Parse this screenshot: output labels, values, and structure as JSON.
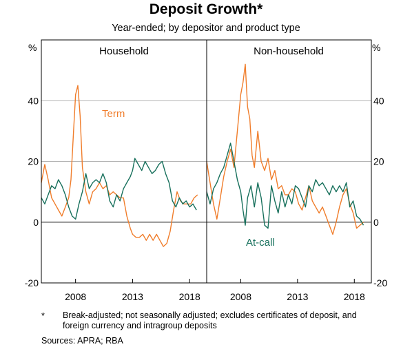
{
  "title": "Deposit Growth*",
  "subtitle": "Year-ended; by depositor and product type",
  "footnote_marker": "*",
  "footnote": "Break-adjusted; not seasonally adjusted; excludes certificates of deposit, and foreign currency and intragroup deposits",
  "sources": "Sources:   APRA; RBA",
  "colors": {
    "term": "#f07d2b",
    "at_call": "#17705c",
    "grid": "#b3b3b3"
  },
  "chart_data": {
    "type": "line",
    "unit_left": "%",
    "unit_right": "%",
    "ylim": [
      -20,
      60
    ],
    "yticks": [
      -20,
      0,
      20,
      40
    ],
    "ytick_labels": [
      "-20",
      "0",
      "20",
      "40"
    ],
    "xticks": [
      2008,
      2013,
      2018
    ],
    "xtick_labels": [
      "2008",
      "2013",
      "2018"
    ],
    "xlim": [
      2005,
      2019.5
    ],
    "grid": true,
    "panels": [
      {
        "title": "Household",
        "series": [
          {
            "name": "Term",
            "key": "term",
            "x": [
              2005.0,
              2005.3,
              2005.6,
              2005.9,
              2006.2,
              2006.5,
              2006.8,
              2007.1,
              2007.4,
              2007.6,
              2007.8,
              2008.0,
              2008.2,
              2008.4,
              2008.6,
              2008.9,
              2009.2,
              2009.5,
              2009.8,
              2010.1,
              2010.4,
              2010.7,
              2011.0,
              2011.3,
              2011.6,
              2011.9,
              2012.2,
              2012.5,
              2012.8,
              2013.0,
              2013.3,
              2013.6,
              2013.9,
              2014.2,
              2014.5,
              2014.8,
              2015.1,
              2015.4,
              2015.7,
              2016.0,
              2016.3,
              2016.6,
              2016.9,
              2017.2,
              2017.5,
              2017.8,
              2018.1,
              2018.4,
              2018.7
            ],
            "y": [
              13,
              19,
              14,
              8,
              6,
              4,
              2,
              5,
              8,
              14,
              28,
              42,
              45,
              35,
              18,
              10,
              6,
              10,
              11,
              13,
              11,
              12,
              9,
              10,
              9,
              8,
              8,
              2,
              -2,
              -4,
              -5,
              -5,
              -4,
              -6,
              -4,
              -6,
              -4,
              -6,
              -8,
              -7,
              -3,
              4,
              10,
              7,
              6,
              6,
              6,
              8,
              9
            ]
          },
          {
            "name": "At-call",
            "key": "at_call",
            "x": [
              2005.0,
              2005.3,
              2005.6,
              2005.9,
              2006.2,
              2006.5,
              2006.8,
              2007.1,
              2007.4,
              2007.7,
              2008.0,
              2008.3,
              2008.6,
              2008.9,
              2009.2,
              2009.5,
              2009.8,
              2010.1,
              2010.4,
              2010.7,
              2011.0,
              2011.3,
              2011.6,
              2011.9,
              2012.2,
              2012.5,
              2012.8,
              2013.0,
              2013.2,
              2013.5,
              2013.8,
              2014.1,
              2014.4,
              2014.7,
              2015.0,
              2015.3,
              2015.6,
              2015.9,
              2016.2,
              2016.5,
              2016.8,
              2017.1,
              2017.4,
              2017.7,
              2018.0,
              2018.3,
              2018.6
            ],
            "y": [
              8,
              6,
              9,
              12,
              11,
              14,
              12,
              9,
              5,
              2,
              1,
              6,
              10,
              16,
              11,
              13,
              14,
              13,
              16,
              13,
              7,
              5,
              9,
              7,
              11,
              13,
              15,
              17,
              21,
              19,
              17,
              20,
              18,
              16,
              17,
              19,
              20,
              16,
              13,
              7,
              5,
              8,
              6,
              7,
              5,
              6,
              4
            ]
          }
        ]
      },
      {
        "title": "Non-household",
        "series": [
          {
            "name": "Term",
            "key": "term",
            "x": [
              2005.0,
              2005.3,
              2005.6,
              2005.9,
              2006.2,
              2006.5,
              2006.8,
              2007.1,
              2007.4,
              2007.7,
              2008.0,
              2008.2,
              2008.4,
              2008.6,
              2008.8,
              2009.0,
              2009.2,
              2009.5,
              2009.8,
              2010.1,
              2010.4,
              2010.7,
              2011.0,
              2011.3,
              2011.6,
              2011.9,
              2012.2,
              2012.5,
              2012.8,
              2013.1,
              2013.4,
              2013.7,
              2014.0,
              2014.3,
              2014.6,
              2014.9,
              2015.2,
              2015.5,
              2015.8,
              2016.1,
              2016.4,
              2016.7,
              2017.0,
              2017.3,
              2017.6,
              2017.9,
              2018.2,
              2018.5,
              2018.8
            ],
            "y": [
              20,
              13,
              6,
              1,
              8,
              15,
              20,
              24,
              18,
              30,
              42,
              46,
              52,
              38,
              34,
              22,
              18,
              30,
              20,
              17,
              21,
              14,
              17,
              11,
              12,
              9,
              9,
              11,
              10,
              6,
              4,
              8,
              12,
              7,
              5,
              3,
              5,
              2,
              -1,
              -4,
              0,
              5,
              9,
              11,
              6,
              3,
              -2,
              -1,
              0
            ]
          },
          {
            "name": "At-call",
            "key": "at_call",
            "x": [
              2005.0,
              2005.3,
              2005.6,
              2005.9,
              2006.2,
              2006.5,
              2006.8,
              2007.1,
              2007.4,
              2007.7,
              2008.0,
              2008.2,
              2008.4,
              2008.6,
              2008.9,
              2009.2,
              2009.5,
              2009.8,
              2010.1,
              2010.4,
              2010.7,
              2011.0,
              2011.3,
              2011.6,
              2011.9,
              2012.2,
              2012.5,
              2012.8,
              2013.1,
              2013.4,
              2013.7,
              2014.0,
              2014.3,
              2014.6,
              2014.9,
              2015.2,
              2015.5,
              2015.8,
              2016.1,
              2016.4,
              2016.7,
              2017.0,
              2017.3,
              2017.6,
              2017.9,
              2018.2,
              2018.5,
              2018.8
            ],
            "y": [
              10,
              6,
              11,
              13,
              16,
              18,
              22,
              26,
              20,
              14,
              10,
              4,
              -1,
              8,
              12,
              5,
              13,
              8,
              -1,
              -2,
              12,
              7,
              3,
              10,
              5,
              9,
              6,
              12,
              11,
              8,
              5,
              12,
              10,
              14,
              12,
              13,
              11,
              9,
              12,
              10,
              12,
              10,
              13,
              5,
              7,
              2,
              1,
              -1
            ]
          }
        ]
      }
    ],
    "annotations": [
      {
        "text": "Term",
        "key": "term"
      },
      {
        "text": "At-call",
        "key": "at_call"
      }
    ]
  }
}
